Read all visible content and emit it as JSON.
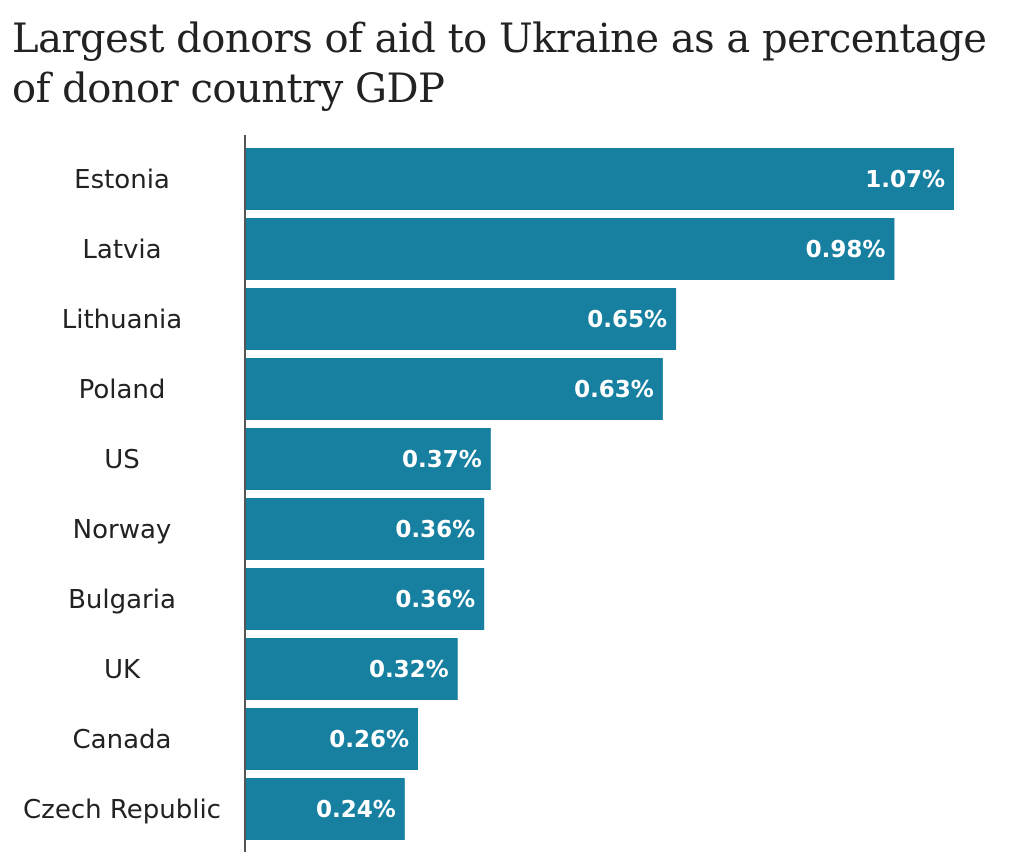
{
  "chart_data": {
    "type": "bar",
    "orientation": "horizontal",
    "title": "Largest donors of aid to Ukraine as a percentage of donor country GDP",
    "xlabel": "",
    "ylabel": "",
    "categories": [
      "Estonia",
      "Latvia",
      "Lithuania",
      "Poland",
      "US",
      "Norway",
      "Bulgaria",
      "UK",
      "Canada",
      "Czech Republic"
    ],
    "values": [
      1.07,
      0.98,
      0.65,
      0.63,
      0.37,
      0.36,
      0.36,
      0.32,
      0.26,
      0.24
    ],
    "value_labels": [
      "1.07%",
      "0.98%",
      "0.65%",
      "0.63%",
      "0.37%",
      "0.36%",
      "0.36%",
      "0.32%",
      "0.26%",
      "0.24%"
    ],
    "unit": "%",
    "xlim": [
      0,
      1.07
    ],
    "grid": false,
    "legend": "none",
    "bar_color": "#1780A1"
  }
}
